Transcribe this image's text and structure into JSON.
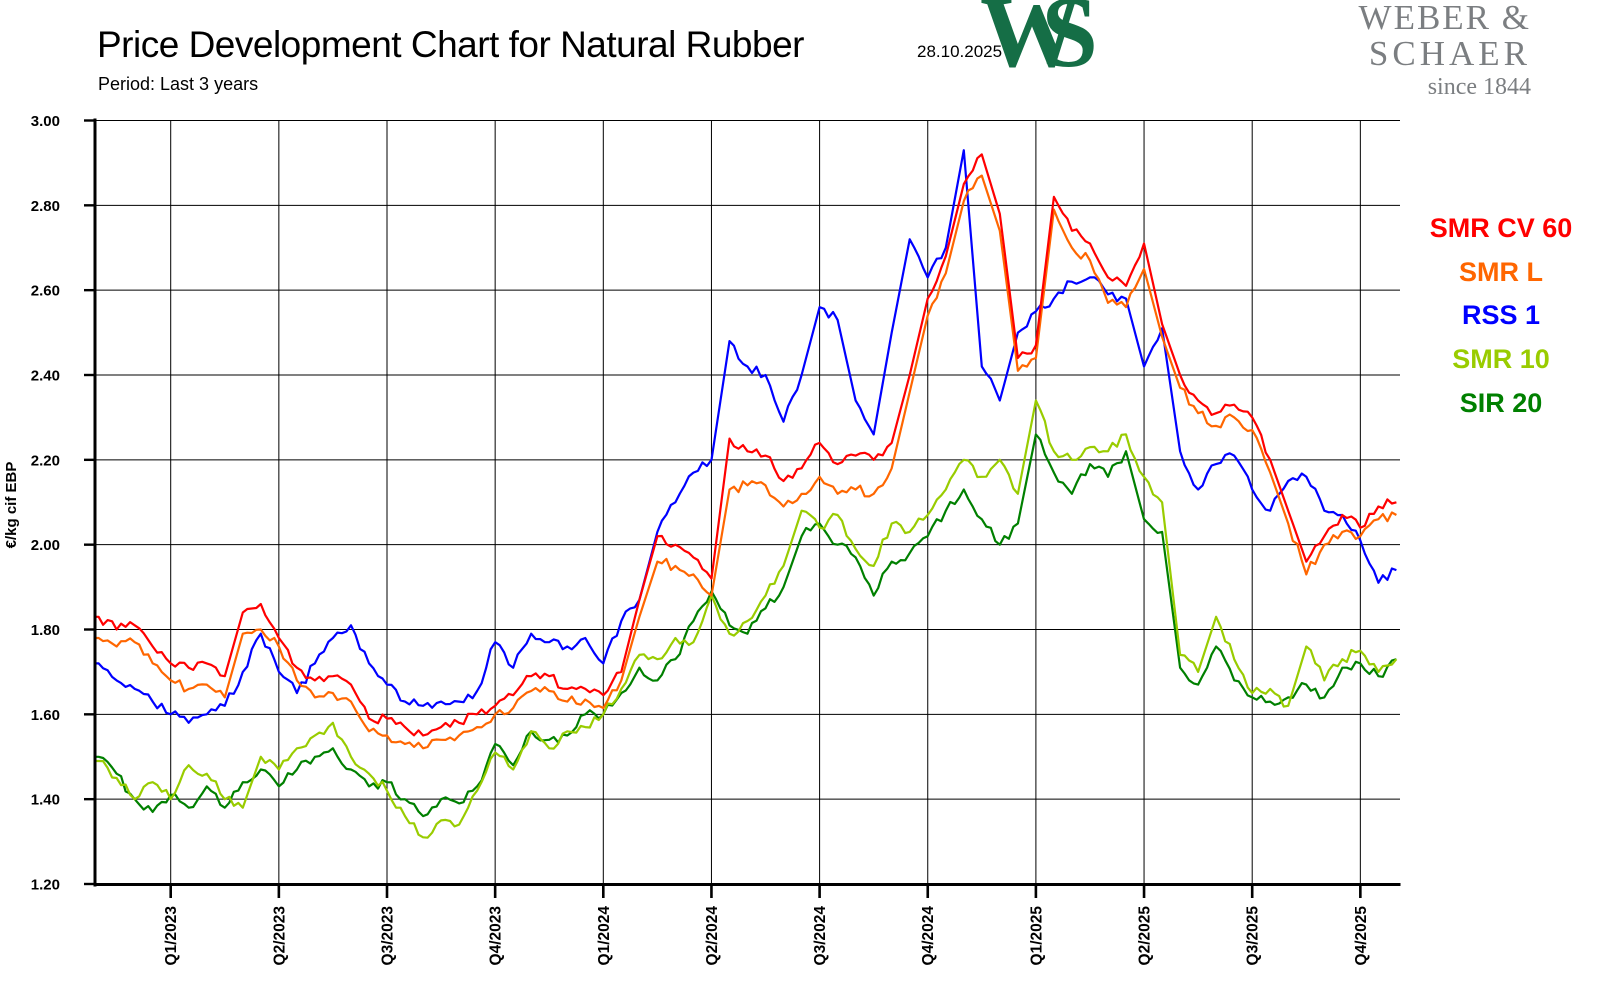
{
  "header": {
    "title": "Price Development Chart for Natural Rubber",
    "date": "28.10.2025",
    "subtitle": "Period: Last 3 years"
  },
  "logo": {
    "monogram_w": "W",
    "monogram_s": "S",
    "name_line1": "WEBER &",
    "name_line2": "SCHAER",
    "tagline": "since 1844",
    "green": "#156e46",
    "gray": "#7b7e81"
  },
  "chart_data": {
    "type": "line",
    "title": "Price Development Chart for Natural Rubber",
    "xlabel": "",
    "ylabel": "€/kg cif EBP",
    "ylim": [
      1.2,
      3.0
    ],
    "ytick_labels": [
      "3.00",
      "2.80",
      "2.60",
      "2.40",
      "2.20",
      "2.00",
      "1.80",
      "1.60",
      "1.40",
      "1.20"
    ],
    "xtick_labels": [
      "Q1/2023",
      "Q2/2023",
      "Q3/2023",
      "Q4/2023",
      "Q1/2024",
      "Q2/2024",
      "Q3/2024",
      "Q4/2024",
      "Q1/2025",
      "Q2/2025",
      "Q3/2025",
      "Q4/2025"
    ],
    "grid": true,
    "legend_position": "right-outside",
    "x_months_after_nov2022": {
      "start": 0,
      "end": 36,
      "step": 0.5
    },
    "series": [
      {
        "name": "SMR CV 60",
        "color": "#ff0000",
        "values": [
          1.83,
          1.8,
          1.81,
          1.76,
          1.72,
          1.71,
          1.72,
          1.69,
          1.84,
          1.86,
          1.78,
          1.71,
          1.68,
          1.69,
          1.67,
          1.59,
          1.59,
          1.57,
          1.55,
          1.57,
          1.58,
          1.6,
          1.62,
          1.645,
          1.69,
          1.69,
          1.66,
          1.66,
          1.645,
          1.7,
          1.87,
          2.02,
          2.0,
          1.97,
          1.92,
          2.25,
          2.22,
          2.21,
          2.15,
          2.18,
          2.24,
          2.19,
          2.21,
          2.2,
          2.24,
          2.4,
          2.58,
          2.68,
          2.85,
          2.92,
          2.78,
          2.44,
          2.47,
          2.82,
          2.74,
          2.71,
          2.63,
          2.61,
          2.71,
          2.52,
          2.4,
          2.34,
          2.31,
          2.33,
          2.3,
          2.2,
          2.08,
          1.96,
          2.02,
          2.07,
          2.04,
          2.09,
          2.1
        ]
      },
      {
        "name": "SMR L",
        "color": "#ff6600",
        "values": [
          1.78,
          1.76,
          1.77,
          1.72,
          1.68,
          1.66,
          1.67,
          1.64,
          1.79,
          1.8,
          1.76,
          1.68,
          1.64,
          1.65,
          1.63,
          1.56,
          1.55,
          1.53,
          1.52,
          1.54,
          1.55,
          1.57,
          1.6,
          1.615,
          1.655,
          1.655,
          1.63,
          1.635,
          1.615,
          1.68,
          1.83,
          1.96,
          1.95,
          1.93,
          1.88,
          2.13,
          2.14,
          2.14,
          2.09,
          2.12,
          2.16,
          2.12,
          2.13,
          2.12,
          2.18,
          2.36,
          2.54,
          2.64,
          2.81,
          2.87,
          2.74,
          2.41,
          2.44,
          2.79,
          2.7,
          2.67,
          2.57,
          2.56,
          2.65,
          2.49,
          2.37,
          2.31,
          2.28,
          2.3,
          2.27,
          2.17,
          2.05,
          1.93,
          2.0,
          2.03,
          2.02,
          2.06,
          2.07
        ]
      },
      {
        "name": "RSS 1",
        "color": "#0000ff",
        "values": [
          1.72,
          1.68,
          1.66,
          1.63,
          1.6,
          1.58,
          1.6,
          1.62,
          1.7,
          1.79,
          1.7,
          1.65,
          1.72,
          1.78,
          1.81,
          1.72,
          1.67,
          1.63,
          1.62,
          1.63,
          1.63,
          1.655,
          1.77,
          1.71,
          1.79,
          1.77,
          1.76,
          1.78,
          1.72,
          1.82,
          1.87,
          2.03,
          2.1,
          2.17,
          2.2,
          2.48,
          2.42,
          2.4,
          2.29,
          2.4,
          2.56,
          2.53,
          2.34,
          2.26,
          2.5,
          2.72,
          2.63,
          2.7,
          2.93,
          2.42,
          2.34,
          2.5,
          2.55,
          2.58,
          2.62,
          2.63,
          2.59,
          2.58,
          2.42,
          2.51,
          2.22,
          2.13,
          2.19,
          2.21,
          2.13,
          2.08,
          2.15,
          2.16,
          2.08,
          2.07,
          2.01,
          1.91,
          1.94
        ]
      },
      {
        "name": "SMR 10",
        "color": "#99cc00",
        "values": [
          1.49,
          1.45,
          1.4,
          1.44,
          1.4,
          1.48,
          1.46,
          1.4,
          1.38,
          1.5,
          1.47,
          1.52,
          1.55,
          1.58,
          1.5,
          1.46,
          1.42,
          1.36,
          1.31,
          1.35,
          1.34,
          1.42,
          1.51,
          1.47,
          1.56,
          1.52,
          1.56,
          1.57,
          1.6,
          1.66,
          1.74,
          1.73,
          1.78,
          1.77,
          1.88,
          1.79,
          1.82,
          1.88,
          1.95,
          2.08,
          2.04,
          2.07,
          1.99,
          1.95,
          2.05,
          2.03,
          2.07,
          2.13,
          2.2,
          2.16,
          2.2,
          2.12,
          2.34,
          2.22,
          2.2,
          2.23,
          2.22,
          2.26,
          2.16,
          2.1,
          1.74,
          1.7,
          1.83,
          1.73,
          1.65,
          1.66,
          1.62,
          1.76,
          1.68,
          1.73,
          1.75,
          1.7,
          1.73
        ]
      },
      {
        "name": "SIR 20",
        "color": "#008000",
        "values": [
          1.5,
          1.46,
          1.4,
          1.37,
          1.41,
          1.38,
          1.43,
          1.38,
          1.44,
          1.47,
          1.43,
          1.47,
          1.5,
          1.52,
          1.47,
          1.43,
          1.44,
          1.4,
          1.36,
          1.4,
          1.39,
          1.43,
          1.53,
          1.48,
          1.56,
          1.54,
          1.55,
          1.6,
          1.6,
          1.65,
          1.71,
          1.68,
          1.73,
          1.82,
          1.89,
          1.81,
          1.79,
          1.85,
          1.9,
          2.02,
          2.05,
          2.0,
          1.97,
          1.88,
          1.96,
          1.98,
          2.02,
          2.08,
          2.13,
          2.06,
          2.0,
          2.05,
          2.26,
          2.17,
          2.12,
          2.19,
          2.16,
          2.22,
          2.06,
          2.03,
          1.71,
          1.67,
          1.76,
          1.68,
          1.64,
          1.63,
          1.64,
          1.67,
          1.64,
          1.71,
          1.72,
          1.69,
          1.73
        ]
      }
    ]
  }
}
